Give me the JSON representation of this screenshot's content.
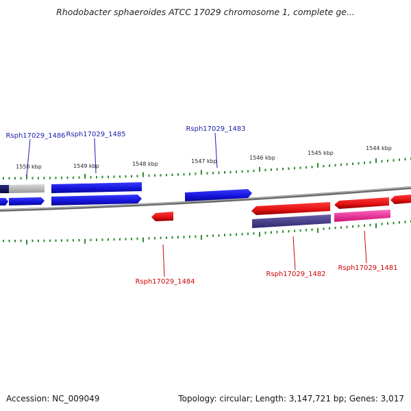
{
  "title": "Rhodobacter sphaeroides ATCC 17029 chromosome 1, complete ge...",
  "footer": {
    "accession": "Accession: NC_009049",
    "topology": "Topology: circular; Length: 3,147,721 bp; Genes: 3,017"
  },
  "scale": {
    "ticks": [
      "1550 kbp",
      "1549 kbp",
      "1548 kbp",
      "1547 kbp",
      "1546 kbp",
      "1545 kbp",
      "1544 kbp"
    ]
  },
  "genes": [
    {
      "locus": "Rsph17029_1486",
      "strand": "+",
      "color": "#1a1acc"
    },
    {
      "locus": "Rsph17029_1485",
      "strand": "+",
      "color": "#1a1acc"
    },
    {
      "locus": "Rsph17029_1483",
      "strand": "+",
      "color": "#1a1acc"
    },
    {
      "locus": "Rsph17029_1484",
      "strand": "-",
      "color": "#dd1111"
    },
    {
      "locus": "Rsph17029_1482",
      "strand": "-",
      "color": "#dd1111"
    },
    {
      "locus": "Rsph17029_1481",
      "strand": "-",
      "color": "#dd1111"
    }
  ],
  "colors": {
    "forward_gene": "#1a1acc",
    "reverse_gene": "#dd1111",
    "label_forward": "#1a1aaa",
    "label_reverse": "#cc0000",
    "tick": "#2a8a2a",
    "backbone": "#888888",
    "pseudo_gray": "#bbbbbb",
    "dark_navy": "#141460",
    "rna_purple": "#4a3f8a",
    "rna_pink": "#ee3399"
  }
}
